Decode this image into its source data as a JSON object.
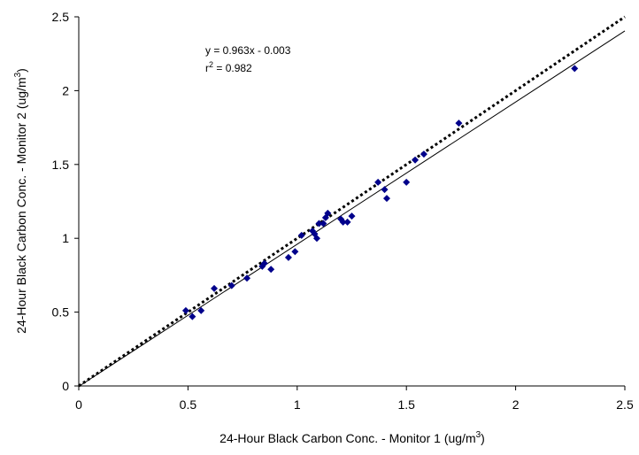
{
  "chart_data": {
    "type": "scatter",
    "title": "",
    "xlabel": "24-Hour Black Carbon Conc. - Monitor 1 (ug/m",
    "xlabel_sup": "3",
    "xlabel_end": ")",
    "ylabel": "24-Hour Black Carbon Conc. - Monitor 2 (ug/m",
    "ylabel_sup": "3",
    "ylabel_end": ")",
    "xlim": [
      0,
      2.5
    ],
    "ylim": [
      0,
      2.5
    ],
    "xticks": [
      "0",
      "0.5",
      "1",
      "1.5",
      "2",
      "2.5"
    ],
    "yticks": [
      "0",
      "0.5",
      "1",
      "1.5",
      "2",
      "2.5"
    ],
    "grid": false,
    "marker_color": "#00008b",
    "series": [
      {
        "points": [
          [
            0.49,
            0.51
          ],
          [
            0.52,
            0.47
          ],
          [
            0.56,
            0.51
          ],
          [
            0.62,
            0.66
          ],
          [
            0.7,
            0.68
          ],
          [
            0.77,
            0.73
          ],
          [
            0.84,
            0.81
          ],
          [
            0.85,
            0.83
          ],
          [
            0.88,
            0.79
          ],
          [
            0.96,
            0.87
          ],
          [
            0.99,
            0.91
          ],
          [
            1.02,
            1.02
          ],
          [
            1.07,
            1.05
          ],
          [
            1.08,
            1.03
          ],
          [
            1.09,
            1.0
          ],
          [
            1.1,
            1.1
          ],
          [
            1.12,
            1.1
          ],
          [
            1.13,
            1.14
          ],
          [
            1.14,
            1.17
          ],
          [
            1.2,
            1.13
          ],
          [
            1.21,
            1.11
          ],
          [
            1.23,
            1.11
          ],
          [
            1.25,
            1.15
          ],
          [
            1.37,
            1.38
          ],
          [
            1.4,
            1.33
          ],
          [
            1.41,
            1.27
          ],
          [
            1.5,
            1.38
          ],
          [
            1.54,
            1.53
          ],
          [
            1.58,
            1.57
          ],
          [
            1.74,
            1.78
          ],
          [
            2.27,
            2.15
          ]
        ]
      }
    ],
    "lines": [
      {
        "style": "solid",
        "slope": 0.963,
        "intercept": -0.003
      },
      {
        "style": "dotted",
        "slope": 1.0,
        "intercept": 0.0
      }
    ],
    "annotation": {
      "equation": "y = 0.963x - 0.003",
      "r2_prefix": "r",
      "r2_sup": "2",
      "r2_value": " = 0.982"
    }
  }
}
